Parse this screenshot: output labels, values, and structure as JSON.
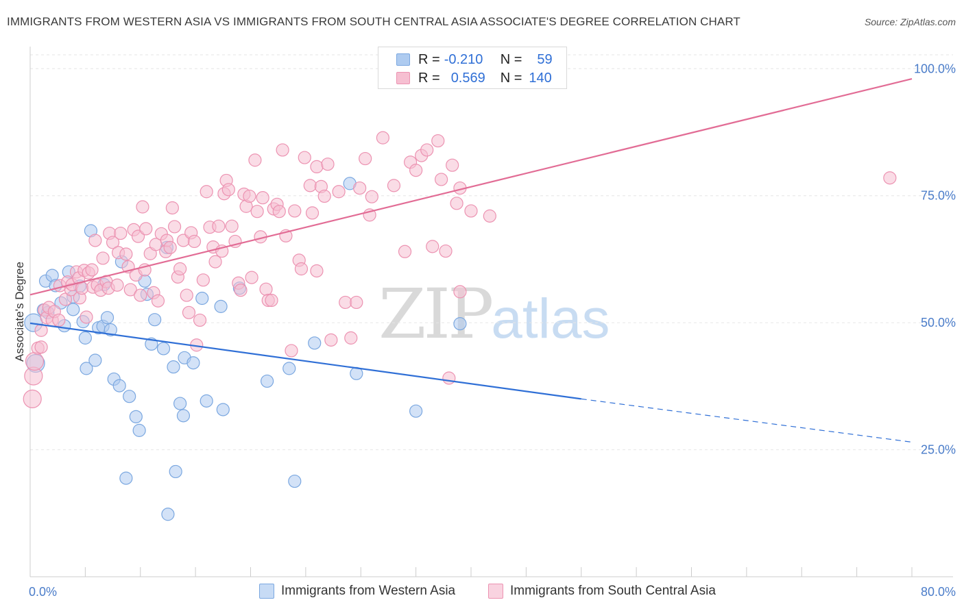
{
  "title": "IMMIGRANTS FROM WESTERN ASIA VS IMMIGRANTS FROM SOUTH CENTRAL ASIA ASSOCIATE'S DEGREE CORRELATION CHART",
  "source": "Source: ZipAtlas.com",
  "watermark": {
    "zip": "ZIP",
    "atlas": "atlas"
  },
  "legend": {
    "rows": [
      {
        "r_label": "R =",
        "r_value": "-0.210",
        "n_label": "N =",
        "n_value": "59"
      },
      {
        "r_label": "R =",
        "r_value": "0.569",
        "n_label": "N =",
        "n_value": "140"
      }
    ]
  },
  "bottom_legend": [
    "Immigrants from Western Asia",
    "Immigrants from South Central Asia"
  ],
  "colors": {
    "blue_fill": "#aecbf0",
    "blue_stroke": "#7aa7e0",
    "blue_line": "#2f6fd6",
    "pink_fill": "#f6bfd1",
    "pink_stroke": "#ec92b1",
    "pink_line": "#e26c95",
    "tick_text": "#4a7cc9"
  },
  "chart_data": {
    "type": "scatter",
    "title": "IMMIGRANTS FROM WESTERN ASIA VS IMMIGRANTS FROM SOUTH CENTRAL ASIA ASSOCIATE'S DEGREE CORRELATION CHART",
    "xlabel": "",
    "ylabel": "Associate's Degree",
    "xlim": [
      0,
      80
    ],
    "ylim": [
      0,
      103
    ],
    "x_tick_labels": [
      {
        "value": 0,
        "label": "0.0%"
      },
      {
        "value": 80,
        "label": "80.0%"
      }
    ],
    "y_tick_labels": [
      {
        "value": 25,
        "label": "25.0%"
      },
      {
        "value": 50,
        "label": "50.0%"
      },
      {
        "value": 75,
        "label": "75.0%"
      },
      {
        "value": 100,
        "label": "100.0%"
      }
    ],
    "grid": true,
    "legend_position": "top-center",
    "series": [
      {
        "name": "Immigrants from Western Asia",
        "color": "#aecbf0",
        "points": [
          [
            0.3,
            50.0
          ],
          [
            0.5,
            42.0
          ],
          [
            1.2,
            52.5
          ],
          [
            1.4,
            58.2
          ],
          [
            1.6,
            52.0
          ],
          [
            2.0,
            59.3
          ],
          [
            2.3,
            57.3
          ],
          [
            2.8,
            53.9
          ],
          [
            3.1,
            49.4
          ],
          [
            3.5,
            60.0
          ],
          [
            3.9,
            52.6
          ],
          [
            3.9,
            55.1
          ],
          [
            4.5,
            57.2
          ],
          [
            4.8,
            50.2
          ],
          [
            5.0,
            47.0
          ],
          [
            5.1,
            41.0
          ],
          [
            5.5,
            68.1
          ],
          [
            5.9,
            42.6
          ],
          [
            6.2,
            49.0
          ],
          [
            6.6,
            49.3
          ],
          [
            6.7,
            57.5
          ],
          [
            7.0,
            51.0
          ],
          [
            7.3,
            48.6
          ],
          [
            7.6,
            38.9
          ],
          [
            8.1,
            37.6
          ],
          [
            8.3,
            62.0
          ],
          [
            8.7,
            19.4
          ],
          [
            9.0,
            35.5
          ],
          [
            9.6,
            31.5
          ],
          [
            9.9,
            28.8
          ],
          [
            10.4,
            58.2
          ],
          [
            10.6,
            55.6
          ],
          [
            11.0,
            45.8
          ],
          [
            11.3,
            50.6
          ],
          [
            12.1,
            44.9
          ],
          [
            12.4,
            64.8
          ],
          [
            13.0,
            41.3
          ],
          [
            13.2,
            20.7
          ],
          [
            13.6,
            34.1
          ],
          [
            13.9,
            31.7
          ],
          [
            14.0,
            43.1
          ],
          [
            14.8,
            42.1
          ],
          [
            15.6,
            54.8
          ],
          [
            16.0,
            34.6
          ],
          [
            17.3,
            53.2
          ],
          [
            17.5,
            32.9
          ],
          [
            19.0,
            56.8
          ],
          [
            21.5,
            38.5
          ],
          [
            23.5,
            41.0
          ],
          [
            24.0,
            18.8
          ],
          [
            25.8,
            46.0
          ],
          [
            29.0,
            77.4
          ],
          [
            29.6,
            40.0
          ],
          [
            35.0,
            32.6
          ],
          [
            39.0,
            49.8
          ],
          [
            12.5,
            12.3
          ]
        ]
      },
      {
        "name": "Immigrants from South Central Asia",
        "color": "#f6bfd1",
        "points": [
          [
            0.2,
            35.0
          ],
          [
            0.3,
            39.5
          ],
          [
            0.4,
            42.4
          ],
          [
            0.7,
            45.0
          ],
          [
            1.0,
            48.5
          ],
          [
            1.0,
            45.2
          ],
          [
            1.3,
            52.5
          ],
          [
            1.5,
            51.0
          ],
          [
            1.7,
            53.0
          ],
          [
            2.0,
            50.5
          ],
          [
            2.2,
            52.2
          ],
          [
            2.6,
            50.5
          ],
          [
            2.7,
            57.3
          ],
          [
            3.2,
            54.6
          ],
          [
            3.4,
            58.0
          ],
          [
            3.7,
            56.5
          ],
          [
            3.8,
            57.5
          ],
          [
            4.2,
            60.0
          ],
          [
            4.4,
            58.8
          ],
          [
            4.5,
            54.9
          ],
          [
            4.7,
            56.8
          ],
          [
            4.9,
            60.3
          ],
          [
            5.1,
            51.1
          ],
          [
            5.3,
            59.8
          ],
          [
            5.6,
            60.4
          ],
          [
            5.7,
            57.0
          ],
          [
            5.9,
            66.2
          ],
          [
            6.1,
            57.4
          ],
          [
            6.4,
            56.4
          ],
          [
            6.6,
            62.7
          ],
          [
            6.9,
            58.1
          ],
          [
            7.1,
            56.8
          ],
          [
            7.2,
            67.6
          ],
          [
            7.5,
            65.8
          ],
          [
            7.9,
            57.4
          ],
          [
            8.0,
            63.8
          ],
          [
            8.2,
            67.6
          ],
          [
            8.7,
            63.5
          ],
          [
            8.9,
            61.0
          ],
          [
            9.1,
            56.5
          ],
          [
            9.4,
            68.3
          ],
          [
            9.6,
            59.4
          ],
          [
            9.8,
            67.0
          ],
          [
            10.0,
            55.4
          ],
          [
            10.2,
            72.8
          ],
          [
            10.4,
            60.4
          ],
          [
            10.5,
            68.5
          ],
          [
            10.9,
            63.6
          ],
          [
            11.2,
            55.9
          ],
          [
            11.4,
            65.4
          ],
          [
            11.6,
            54.3
          ],
          [
            11.9,
            67.5
          ],
          [
            12.3,
            64.0
          ],
          [
            12.4,
            66.2
          ],
          [
            12.7,
            64.8
          ],
          [
            12.9,
            72.6
          ],
          [
            13.1,
            68.9
          ],
          [
            13.4,
            59.0
          ],
          [
            13.6,
            60.6
          ],
          [
            13.9,
            66.2
          ],
          [
            14.2,
            55.4
          ],
          [
            14.4,
            52.0
          ],
          [
            14.6,
            67.7
          ],
          [
            14.9,
            66.0
          ],
          [
            15.1,
            45.6
          ],
          [
            15.4,
            50.5
          ],
          [
            15.7,
            58.4
          ],
          [
            16.0,
            75.8
          ],
          [
            16.3,
            68.8
          ],
          [
            16.6,
            64.9
          ],
          [
            16.8,
            62.0
          ],
          [
            17.1,
            69.0
          ],
          [
            17.4,
            64.1
          ],
          [
            17.6,
            75.4
          ],
          [
            17.8,
            78.0
          ],
          [
            18.0,
            76.2
          ],
          [
            18.3,
            69.0
          ],
          [
            18.6,
            66.0
          ],
          [
            18.9,
            57.8
          ],
          [
            19.1,
            56.4
          ],
          [
            19.4,
            75.3
          ],
          [
            19.6,
            72.9
          ],
          [
            19.9,
            74.9
          ],
          [
            20.1,
            58.9
          ],
          [
            20.4,
            82.0
          ],
          [
            20.6,
            71.9
          ],
          [
            20.9,
            66.9
          ],
          [
            21.1,
            74.6
          ],
          [
            21.4,
            56.6
          ],
          [
            21.6,
            54.4
          ],
          [
            21.9,
            54.4
          ],
          [
            22.1,
            72.4
          ],
          [
            22.4,
            73.3
          ],
          [
            22.6,
            71.9
          ],
          [
            22.9,
            84.0
          ],
          [
            23.2,
            67.1
          ],
          [
            23.7,
            44.5
          ],
          [
            24.0,
            72.0
          ],
          [
            24.4,
            62.3
          ],
          [
            24.6,
            60.6
          ],
          [
            24.9,
            82.5
          ],
          [
            25.4,
            77.0
          ],
          [
            25.6,
            71.6
          ],
          [
            26.0,
            80.7
          ],
          [
            26.4,
            76.8
          ],
          [
            26.7,
            74.9
          ],
          [
            27.0,
            81.2
          ],
          [
            27.3,
            46.6
          ],
          [
            28.0,
            75.8
          ],
          [
            28.6,
            54.0
          ],
          [
            29.1,
            47.0
          ],
          [
            29.6,
            54.0
          ],
          [
            29.9,
            76.5
          ],
          [
            30.4,
            82.3
          ],
          [
            30.8,
            71.2
          ],
          [
            31.0,
            74.8
          ],
          [
            32.0,
            86.4
          ],
          [
            33.0,
            77.0
          ],
          [
            34.0,
            64.0
          ],
          [
            34.5,
            81.6
          ],
          [
            35.0,
            80.0
          ],
          [
            35.5,
            82.9
          ],
          [
            36.0,
            84.0
          ],
          [
            37.0,
            85.8
          ],
          [
            37.3,
            78.2
          ],
          [
            37.7,
            64.1
          ],
          [
            38.0,
            39.1
          ],
          [
            38.3,
            81.0
          ],
          [
            38.7,
            73.5
          ],
          [
            39.0,
            76.5
          ],
          [
            40.0,
            72.0
          ],
          [
            41.7,
            71.0
          ],
          [
            39.0,
            56.1
          ],
          [
            78.0,
            78.5
          ],
          [
            36.5,
            65.0
          ],
          [
            26.0,
            60.2
          ]
        ]
      }
    ],
    "trend_lines": [
      {
        "series": "Immigrants from Western Asia",
        "x": [
          0,
          50
        ],
        "y": [
          49.9,
          35.0
        ],
        "dashed_extension_to": 80,
        "dashed_y": 26.5
      },
      {
        "series": "Immigrants from South Central Asia",
        "x": [
          0,
          80
        ],
        "y": [
          55.5,
          98.0
        ]
      }
    ]
  }
}
